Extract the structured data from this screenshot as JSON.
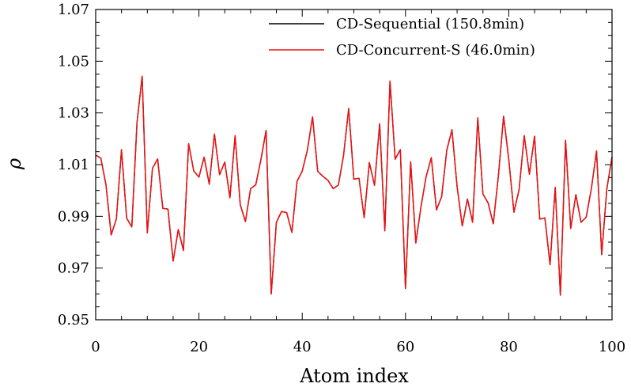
{
  "chart_data": {
    "type": "line",
    "title": "",
    "xlabel": "Atom index",
    "ylabel": "ρ",
    "xlim": [
      0,
      100
    ],
    "ylim": [
      0.95,
      1.07
    ],
    "xticks": [
      0,
      20,
      40,
      60,
      80,
      100
    ],
    "xtick_labels": [
      "0",
      "20",
      "40",
      "60",
      "80",
      "100"
    ],
    "yticks": [
      0.95,
      0.97,
      0.99,
      1.01,
      1.03,
      1.05,
      1.07
    ],
    "ytick_labels": [
      "0.95",
      "0.97",
      "0.99",
      "1.01",
      "1.03",
      "1.05",
      "1.07"
    ],
    "legend_position": "top-right",
    "grid": false,
    "series": [
      {
        "name": "CD-Sequential (150.8min)",
        "color": "#000000",
        "values": [
          1.0137,
          1.0125,
          1.0021,
          0.9828,
          0.9889,
          1.0158,
          0.9893,
          0.9859,
          1.0262,
          1.0442,
          0.9836,
          1.0086,
          1.0122,
          0.9931,
          0.9928,
          0.9727,
          0.9849,
          0.9768,
          1.0181,
          1.0075,
          1.0052,
          1.0129,
          1.0024,
          1.0218,
          1.0061,
          1.011,
          0.9972,
          1.0212,
          0.9945,
          0.988,
          1.0007,
          1.0022,
          1.0119,
          1.0232,
          0.96,
          0.9877,
          0.9919,
          0.9914,
          0.9838,
          1.0036,
          1.0075,
          1.0156,
          1.0285,
          1.0074,
          1.0055,
          1.0039,
          1.0007,
          1.0021,
          1.0135,
          1.0317,
          1.0044,
          1.0047,
          0.9895,
          1.0108,
          1.002,
          1.0258,
          0.9844,
          1.0423,
          1.0121,
          1.0158,
          0.9621,
          1.0111,
          0.9797,
          0.9937,
          1.0054,
          1.0127,
          0.9925,
          0.9976,
          1.0156,
          1.0235,
          1.0014,
          0.9863,
          0.9967,
          0.9877,
          1.0281,
          0.9986,
          0.9952,
          0.9871,
          1.0058,
          1.0287,
          1.0121,
          0.9916,
          1.0003,
          1.0212,
          1.0063,
          1.021,
          0.9889,
          0.9894,
          0.9713,
          1.0012,
          0.9595,
          1.0194,
          0.9853,
          0.9984,
          0.9877,
          0.9897,
          1.0007,
          1.0153,
          0.9752,
          1.0007,
          1.013
        ]
      },
      {
        "name": "CD-Concurrent-S (46.0min)",
        "color": "#ee1111",
        "values": [
          1.0137,
          1.0125,
          1.0021,
          0.9828,
          0.9889,
          1.0158,
          0.9893,
          0.9859,
          1.0262,
          1.0442,
          0.9836,
          1.0086,
          1.0122,
          0.9931,
          0.9928,
          0.9727,
          0.9849,
          0.9768,
          1.0181,
          1.0075,
          1.0052,
          1.0129,
          1.0024,
          1.0218,
          1.0061,
          1.011,
          0.9972,
          1.0212,
          0.9945,
          0.988,
          1.0007,
          1.0022,
          1.0119,
          1.0232,
          0.96,
          0.9877,
          0.9919,
          0.9914,
          0.9838,
          1.0036,
          1.0075,
          1.0156,
          1.0285,
          1.0074,
          1.0055,
          1.0039,
          1.0007,
          1.0021,
          1.0135,
          1.0317,
          1.0044,
          1.0047,
          0.9895,
          1.0108,
          1.002,
          1.0258,
          0.9844,
          1.0423,
          1.0121,
          1.0158,
          0.9621,
          1.0111,
          0.9797,
          0.9937,
          1.0054,
          1.0127,
          0.9925,
          0.9976,
          1.0156,
          1.0235,
          1.0014,
          0.9863,
          0.9967,
          0.9877,
          1.0281,
          0.9986,
          0.9952,
          0.9871,
          1.0058,
          1.0287,
          1.0121,
          0.9916,
          1.0003,
          1.0212,
          1.0063,
          1.021,
          0.9889,
          0.9894,
          0.9713,
          1.0012,
          0.9595,
          1.0194,
          0.9853,
          0.9984,
          0.9877,
          0.9897,
          1.0007,
          1.0153,
          0.9752,
          1.0007,
          1.013
        ]
      }
    ]
  }
}
